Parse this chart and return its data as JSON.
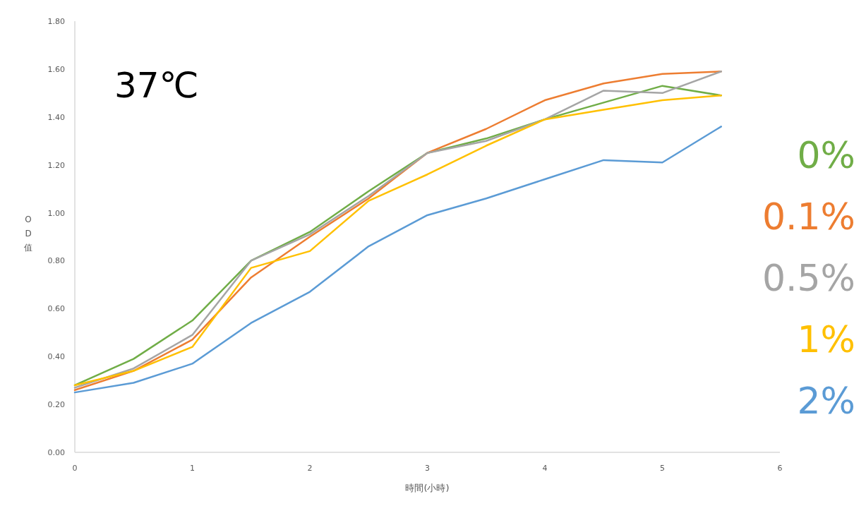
{
  "chart_data": {
    "type": "line",
    "title": "37℃",
    "xlabel": "時間(小時)",
    "ylabel": "OD值",
    "x": [
      0,
      0.5,
      1,
      1.5,
      2,
      2.5,
      3,
      3.5,
      4,
      4.5,
      5,
      5.5
    ],
    "series": [
      {
        "name": "0%",
        "color": "#70ad47",
        "values": [
          0.28,
          0.39,
          0.55,
          0.8,
          0.92,
          1.09,
          1.25,
          1.31,
          1.39,
          1.46,
          1.53,
          1.49
        ]
      },
      {
        "name": "0.1%",
        "color": "#ed7d31",
        "values": [
          0.26,
          0.34,
          0.47,
          0.73,
          0.9,
          1.06,
          1.25,
          1.35,
          1.47,
          1.54,
          1.58,
          1.59
        ]
      },
      {
        "name": "0.5%",
        "color": "#a5a5a5",
        "values": [
          0.27,
          0.35,
          0.49,
          0.8,
          0.91,
          1.07,
          1.25,
          1.3,
          1.39,
          1.51,
          1.5,
          1.59
        ]
      },
      {
        "name": "1%",
        "color": "#ffc000",
        "values": [
          0.28,
          0.34,
          0.44,
          0.77,
          0.84,
          1.05,
          1.16,
          1.28,
          1.39,
          1.43,
          1.47,
          1.49
        ]
      },
      {
        "name": "2%",
        "color": "#5b9bd5",
        "values": [
          0.25,
          0.29,
          0.37,
          0.54,
          0.67,
          0.86,
          0.99,
          1.06,
          1.14,
          1.22,
          1.21,
          1.36
        ]
      }
    ],
    "xlim": [
      0,
      6
    ],
    "xticks": [
      0,
      1,
      2,
      3,
      4,
      5,
      6
    ],
    "ylim": [
      0,
      1.8
    ],
    "yticks": [
      {
        "value": 0,
        "label": "0.00"
      },
      {
        "value": 0.2,
        "label": "0.20"
      },
      {
        "value": 0.4,
        "label": "0.40"
      },
      {
        "value": 0.6,
        "label": "0.60"
      },
      {
        "value": 0.8,
        "label": "0.80"
      },
      {
        "value": 1,
        "label": "1.00"
      },
      {
        "value": 1.2,
        "label": "1.20"
      },
      {
        "value": 1.4,
        "label": "1.40"
      },
      {
        "value": 1.6,
        "label": "1.60"
      },
      {
        "value": 1.8,
        "label": "1.80"
      }
    ],
    "grid": false,
    "legend": "right",
    "marker": "none",
    "line_style": "solid"
  }
}
